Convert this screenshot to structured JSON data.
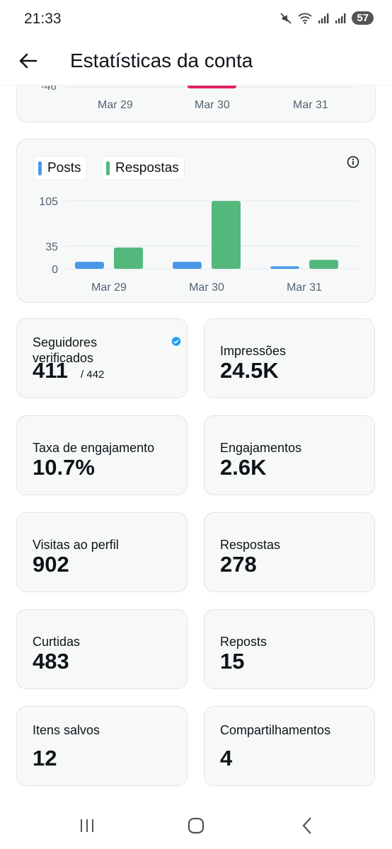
{
  "status_bar": {
    "time": "21:33",
    "battery": "57"
  },
  "header": {
    "title": "Estatísticas da conta"
  },
  "top_chart": {
    "y_tick": "-46",
    "x_labels": [
      "Mar 29",
      "Mar 30",
      "Mar 31"
    ],
    "accent_color": "#e0245e"
  },
  "chart_data": {
    "type": "bar",
    "categories": [
      "Mar 29",
      "Mar 30",
      "Mar 31"
    ],
    "series": [
      {
        "name": "Posts",
        "color": "#4a99e9",
        "values": [
          11,
          11,
          4
        ]
      },
      {
        "name": "Respostas",
        "color": "#53b87c",
        "values": [
          33,
          105,
          14
        ]
      }
    ],
    "y_ticks": [
      0,
      35,
      105
    ],
    "ylim": [
      0,
      105
    ],
    "title": "",
    "xlabel": "",
    "ylabel": ""
  },
  "stats": [
    {
      "label": "Seguidores verificados",
      "value": "411",
      "sub": "/ 442",
      "verified": true
    },
    {
      "label": "Impressões",
      "value": "24.5K"
    },
    {
      "label": "Taxa de engajamento",
      "value": "10.7%"
    },
    {
      "label": "Engajamentos",
      "value": "2.6K"
    },
    {
      "label": "Visitas ao perfil",
      "value": "902"
    },
    {
      "label": "Respostas",
      "value": "278"
    },
    {
      "label": "Curtidas",
      "value": "483"
    },
    {
      "label": "Reposts",
      "value": "15"
    },
    {
      "label": "Itens salvos",
      "value": "12"
    },
    {
      "label": "Compartilhamentos",
      "value": "4"
    }
  ],
  "icons": {
    "back": "arrow-left-icon",
    "info": "info-icon",
    "verified": "verified-badge-icon",
    "nav_recents": "recents-icon",
    "nav_home": "home-icon",
    "nav_back": "chevron-left-icon"
  },
  "colors": {
    "verified": "#1d9bf0",
    "card_bg": "#f7f9f9",
    "card_border": "#dfe4e7"
  }
}
